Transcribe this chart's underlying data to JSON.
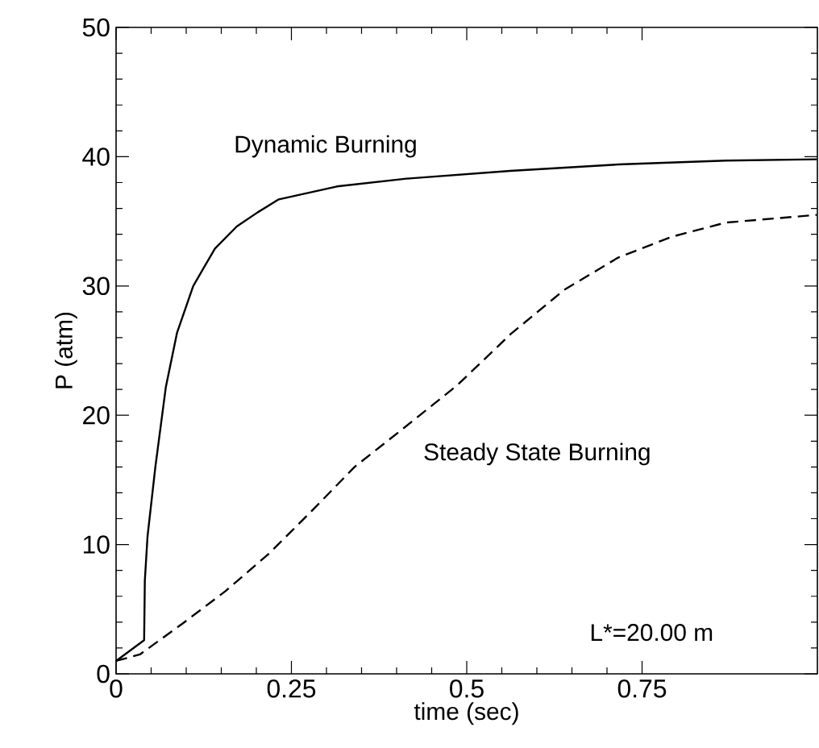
{
  "chart_data": {
    "type": "line",
    "xlabel": "time (sec)",
    "ylabel": "P (atm)",
    "xlim": [
      0,
      1
    ],
    "ylim": [
      0,
      50
    ],
    "xticks": [
      0,
      0.25,
      0.5,
      0.75
    ],
    "yticks": [
      0,
      10,
      20,
      30,
      40,
      50
    ],
    "annotations": [
      "L*=20.00 m"
    ],
    "series": [
      {
        "name": "Dynamic Burning",
        "color": "#000000",
        "line_style": "solid",
        "x": [
          0,
          0.04,
          0.041,
          0.0448,
          0.056,
          0.071,
          0.087,
          0.11,
          0.141,
          0.172,
          0.202,
          0.232,
          0.315,
          0.414,
          0.562,
          0.716,
          0.869,
          0.999
        ],
        "values": [
          1.0,
          2.6,
          7.2,
          10.6,
          16.0,
          22.2,
          26.4,
          30.0,
          32.9,
          34.6,
          35.7,
          36.7,
          37.7,
          38.3,
          38.9,
          39.4,
          39.7,
          39.8
        ]
      },
      {
        "name": "Steady State Burning",
        "color": "#000000",
        "line_style": "dashed",
        "x": [
          0,
          0.034,
          0.095,
          0.156,
          0.218,
          0.279,
          0.34,
          0.41,
          0.486,
          0.563,
          0.639,
          0.716,
          0.792,
          0.869,
          0.999
        ],
        "values": [
          1.0,
          1.5,
          3.9,
          6.4,
          9.3,
          12.6,
          16.0,
          19.0,
          22.3,
          26.3,
          29.7,
          32.2,
          33.8,
          34.9,
          35.5
        ]
      }
    ]
  }
}
